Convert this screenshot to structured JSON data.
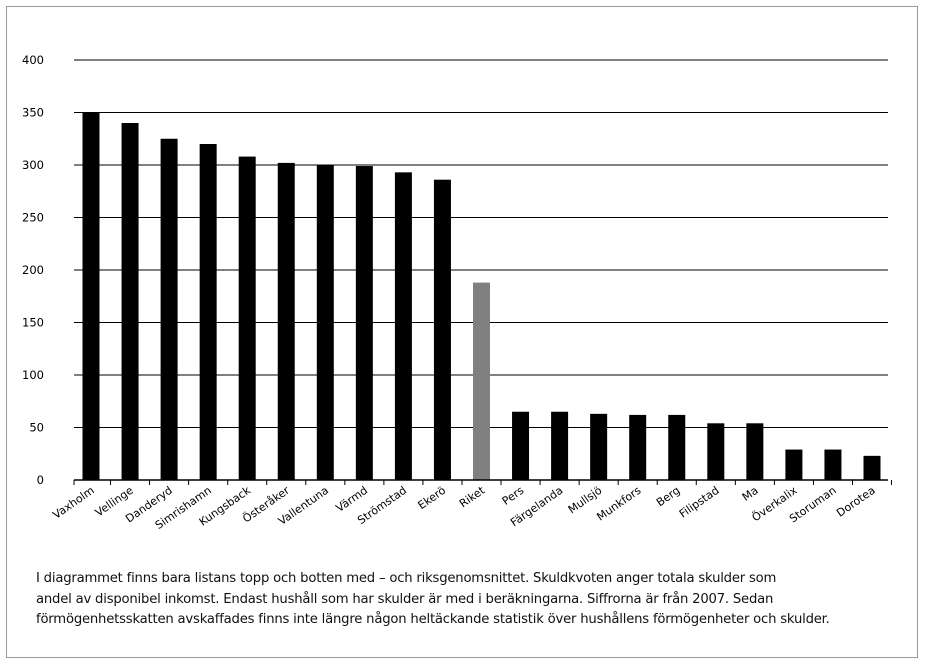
{
  "chart_data": {
    "type": "bar",
    "title": "",
    "xlabel": "",
    "ylabel": "",
    "ylim": [
      0,
      400
    ],
    "yticks": [
      0,
      50,
      100,
      150,
      200,
      250,
      300,
      350,
      400
    ],
    "grid": true,
    "legend": "none",
    "categories": [
      "Vaxholm",
      "Vellinge",
      "Danderyd",
      "Simrishamn",
      "Kungsback",
      "Österåker",
      "Vallentuna",
      "Värmd",
      "Strömstad",
      "Ekerö",
      "Riket",
      "Pers",
      "Färgelanda",
      "Mullsjö",
      "Munkfors",
      "Berg",
      "Filipstad",
      "Ma",
      "Överkalix",
      "Storuman",
      "Dorotea"
    ],
    "values": [
      350,
      340,
      325,
      320,
      308,
      302,
      300,
      299,
      293,
      286,
      188,
      65,
      65,
      63,
      62,
      62,
      54,
      54,
      29,
      29,
      23
    ],
    "bar_colors": [
      "#000000",
      "#000000",
      "#000000",
      "#000000",
      "#000000",
      "#000000",
      "#000000",
      "#000000",
      "#000000",
      "#000000",
      "#808080",
      "#000000",
      "#000000",
      "#000000",
      "#000000",
      "#000000",
      "#000000",
      "#000000",
      "#000000",
      "#000000",
      "#000000"
    ]
  },
  "caption": [
    "I diagrammet finns bara listans topp och botten med – och riksgenomsnittet. Skuldkvoten anger totala skulder som",
    "andel av disponibel inkomst. Endast hushåll som har skulder är med i beräkningarna. Siffrorna är från 2007. Sedan",
    "förmögenhetsskatten avskaffades finns inte längre någon heltäckande statistik över hushållens förmögenheter och skulder."
  ]
}
